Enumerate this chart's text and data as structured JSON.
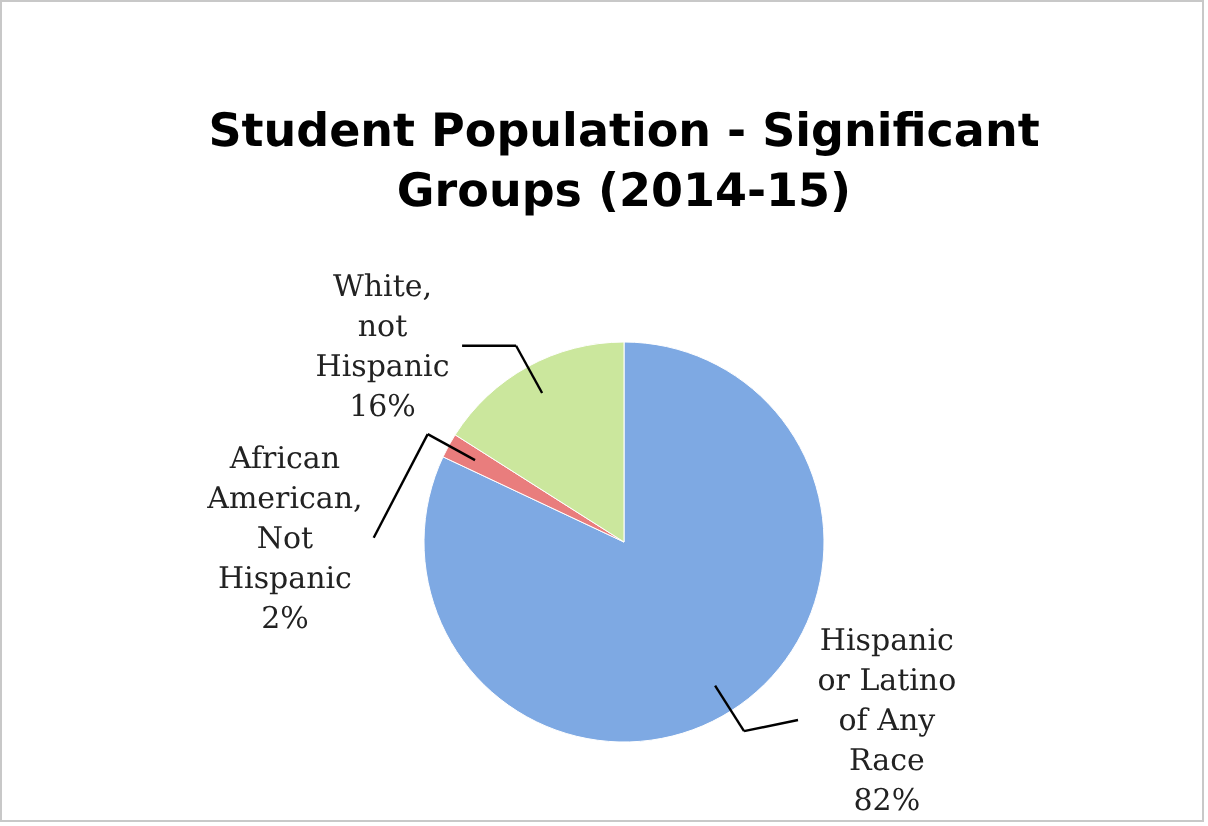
{
  "chart_data": {
    "type": "pie",
    "title": "Student Population - Significant Groups (2014-15)",
    "categories": [
      "Hispanic or Latino of Any Race",
      "African American, Not Hispanic",
      "White, not Hispanic"
    ],
    "values": [
      82,
      2,
      16
    ],
    "colors": [
      "#7ea9e3",
      "#e97d7d",
      "#cbe79d"
    ],
    "value_labels": [
      "82%",
      "2%",
      "16%"
    ]
  }
}
